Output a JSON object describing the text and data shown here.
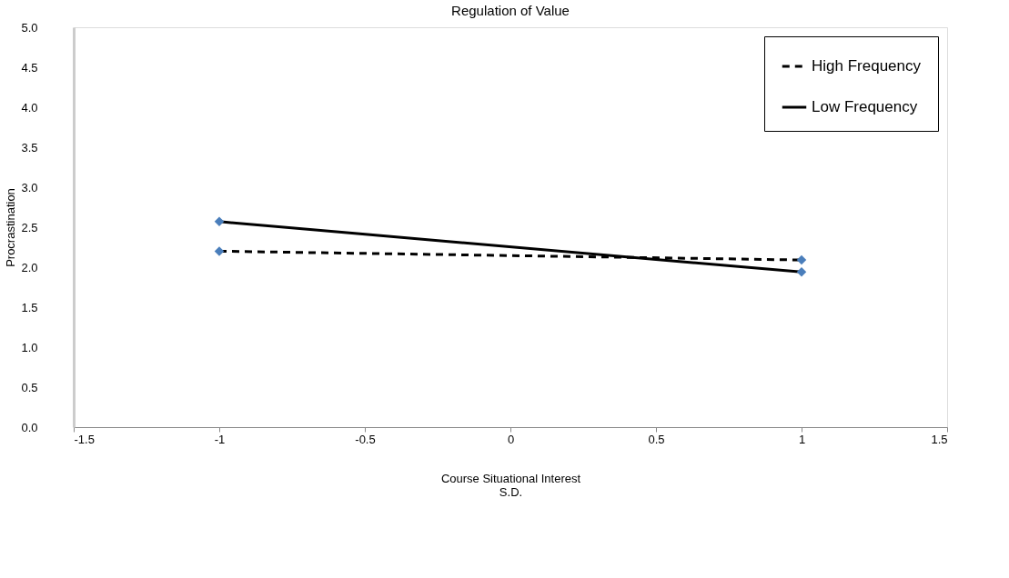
{
  "chart_data": {
    "type": "line",
    "title": "Regulation of Value",
    "xlabel": "Course Situational Interest\nS.D.",
    "ylabel": "Procrastination",
    "x": [
      -1,
      1
    ],
    "series": [
      {
        "name": "High Frequency",
        "color": "#000000",
        "values": [
          2.2,
          2.09
        ],
        "line_style": "dashed"
      },
      {
        "name": "Low Frequency",
        "color": "#000000",
        "values": [
          2.57,
          1.94
        ],
        "line_style": "solid"
      }
    ],
    "marker": "diamond",
    "xlim": [
      -1.5,
      1.5
    ],
    "xticks": [
      -1.5,
      -1,
      -0.5,
      0,
      0.5,
      1,
      1.5
    ],
    "ylim": [
      0,
      5
    ],
    "yticks": [
      {
        "value": 0,
        "label": "0.0"
      },
      0.5,
      {
        "value": 1,
        "label": "1.0"
      },
      1.5,
      {
        "value": 2,
        "label": "2.0"
      },
      2.5,
      {
        "value": 3,
        "label": "3.0"
      },
      3.5,
      {
        "value": 4,
        "label": "4.0"
      },
      4.5,
      {
        "value": 5,
        "label": "5.0"
      }
    ],
    "grid": false,
    "legend": "top right"
  }
}
